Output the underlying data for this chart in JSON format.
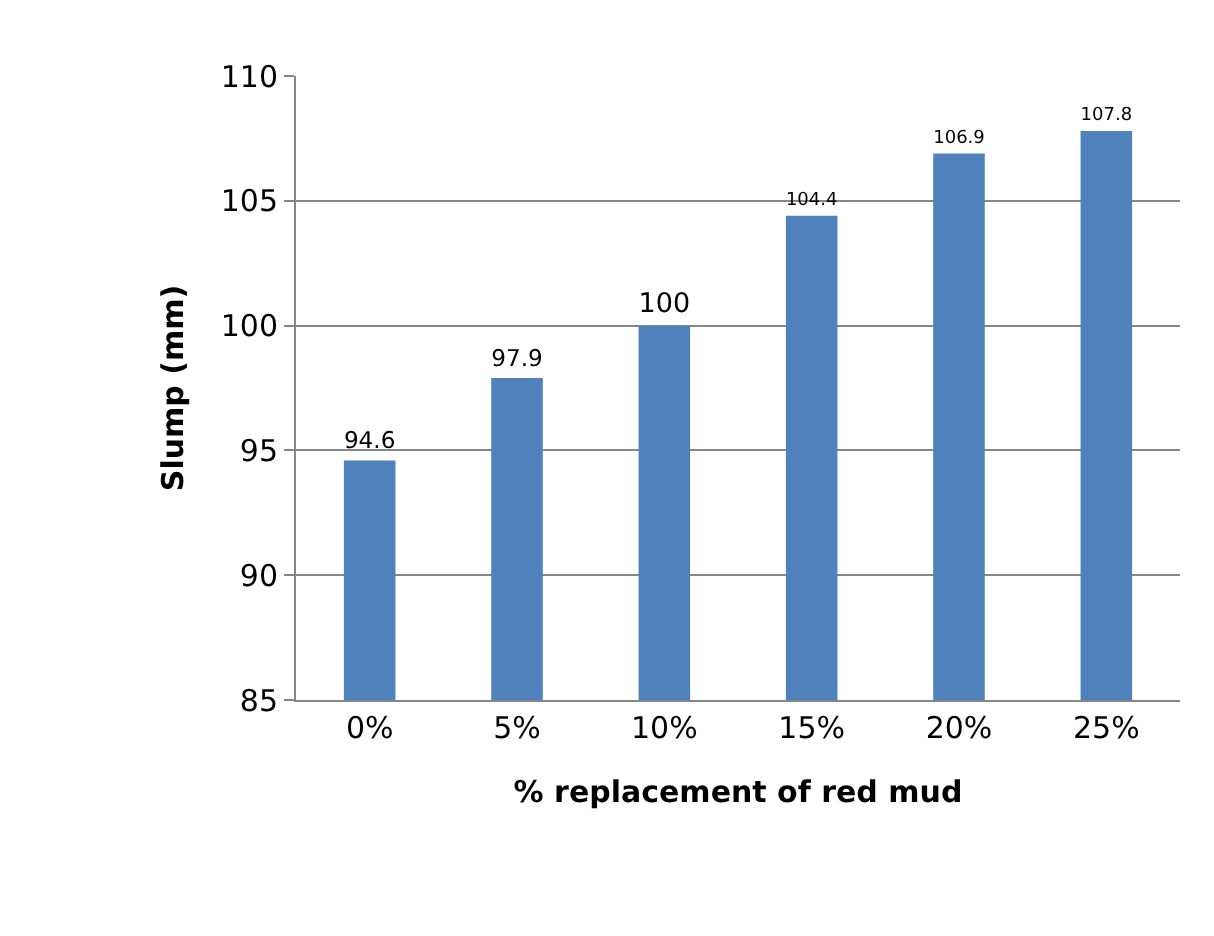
{
  "chart_data": {
    "type": "bar",
    "xlabel": "% replacement of red mud",
    "ylabel": "Slump (mm)",
    "categories": [
      "0%",
      "5%",
      "10%",
      "15%",
      "20%",
      "25%"
    ],
    "values": [
      94.6,
      97.9,
      100,
      104.4,
      106.9,
      107.8
    ],
    "color": "#4f81bd",
    "ylim": [
      85,
      110
    ],
    "yticks": [
      85,
      90,
      95,
      100,
      105,
      110
    ],
    "grid": "y",
    "data_labels": true
  }
}
